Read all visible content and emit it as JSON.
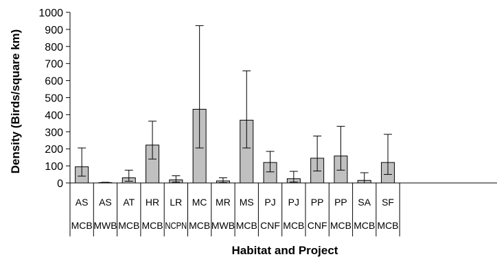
{
  "chart_data": {
    "type": "bar",
    "title": "",
    "xlabel": "Habitat and Project",
    "ylabel": "Density (Birds/square km)",
    "ylim": [
      0,
      1000
    ],
    "yticks": [
      0,
      100,
      200,
      300,
      400,
      500,
      600,
      700,
      800,
      900,
      1000
    ],
    "grid": false,
    "legend": "none",
    "bar_color": "#c0c0c0",
    "categories": [
      {
        "habitat": "AS",
        "project": "MCB"
      },
      {
        "habitat": "AS",
        "project": "MWB"
      },
      {
        "habitat": "AT",
        "project": "MCB"
      },
      {
        "habitat": "HR",
        "project": "MCB"
      },
      {
        "habitat": "LR",
        "project": "NCPN"
      },
      {
        "habitat": "MC",
        "project": "MCB"
      },
      {
        "habitat": "MR",
        "project": "MWB"
      },
      {
        "habitat": "MS",
        "project": "MCB"
      },
      {
        "habitat": "PJ",
        "project": "CNF"
      },
      {
        "habitat": "PJ",
        "project": "MCB"
      },
      {
        "habitat": "PP",
        "project": "CNF"
      },
      {
        "habitat": "PP",
        "project": "MCB"
      },
      {
        "habitat": "SA",
        "project": "MCB"
      },
      {
        "habitat": "SF",
        "project": "MCB"
      }
    ],
    "values": [
      95,
      2,
      30,
      222,
      18,
      432,
      12,
      368,
      120,
      25,
      145,
      158,
      15,
      120
    ],
    "error_upper": [
      205,
      4,
      75,
      362,
      42,
      922,
      30,
      657,
      185,
      68,
      275,
      332,
      60,
      285
    ],
    "error_lower": [
      40,
      0,
      10,
      140,
      5,
      205,
      2,
      205,
      65,
      5,
      70,
      75,
      0,
      50
    ]
  }
}
